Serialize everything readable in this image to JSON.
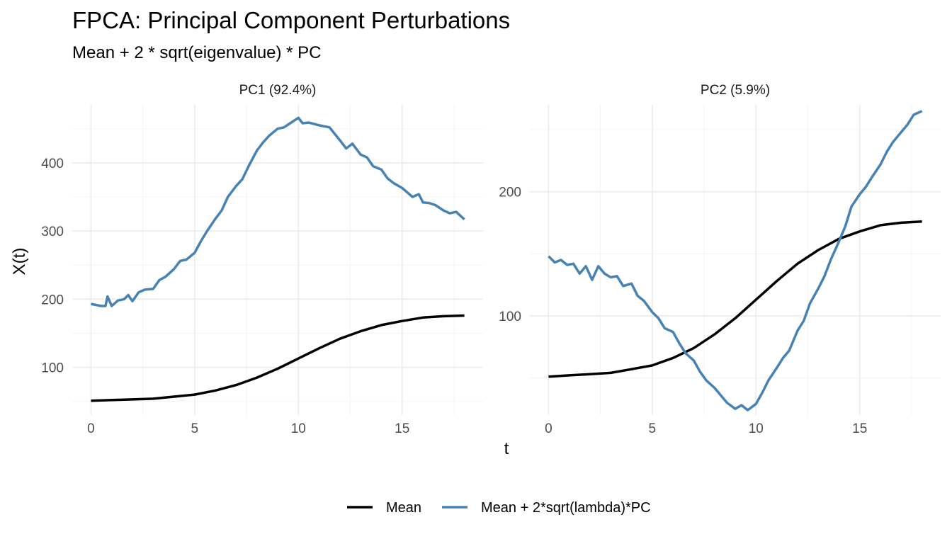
{
  "title": "FPCA: Principal Component Perturbations",
  "subtitle": "Mean + 2 * sqrt(eigenvalue) * PC",
  "colors": {
    "mean": "#000000",
    "perturbed": "#4682B4"
  },
  "legend": {
    "mean_label": "Mean",
    "perturbed_label": "Mean + 2*sqrt(lambda)*PC",
    "position": "bottom"
  },
  "chart_data": [
    {
      "type": "line",
      "panel": "PC1 (92.4%)",
      "xlabel": "t",
      "ylabel": "X(t)",
      "xlim": [
        -0.9,
        18.9
      ],
      "ylim": [
        30,
        485
      ],
      "xticks": [
        0,
        5,
        10,
        15
      ],
      "yticks": [
        100,
        200,
        300,
        400
      ],
      "series": [
        {
          "name": "Mean",
          "x": [
            0,
            1,
            2,
            3,
            4,
            5,
            6,
            7,
            8,
            9,
            10,
            11,
            12,
            13,
            14,
            15,
            16,
            17,
            18
          ],
          "values": [
            51,
            52,
            53,
            54,
            57,
            60,
            66,
            74,
            85,
            98,
            113,
            128,
            142,
            153,
            162,
            168,
            173,
            175,
            176
          ]
        },
        {
          "name": "Mean + 2*sqrt(lambda)*PC",
          "x": [
            0,
            0.5,
            0.7,
            0.8,
            1,
            1.3,
            1.6,
            1.8,
            2,
            2.3,
            2.6,
            3,
            3.3,
            3.6,
            4,
            4.3,
            4.6,
            5,
            5.3,
            5.6,
            6,
            6.3,
            6.6,
            7,
            7.3,
            7.6,
            8,
            8.3,
            8.6,
            9,
            9.3,
            9.6,
            10,
            10.2,
            10.5,
            11,
            11.5,
            12,
            12.3,
            12.6,
            13,
            13.3,
            13.6,
            14,
            14.3,
            14.6,
            15,
            15.5,
            15.8,
            16,
            16.3,
            16.6,
            17,
            17.3,
            17.6,
            18
          ],
          "values": [
            193,
            190,
            190,
            204,
            190,
            198,
            200,
            206,
            197,
            210,
            214,
            215,
            228,
            233,
            244,
            256,
            258,
            268,
            285,
            300,
            318,
            330,
            350,
            366,
            376,
            395,
            418,
            430,
            440,
            450,
            452,
            458,
            466,
            458,
            459,
            455,
            452,
            433,
            421,
            428,
            412,
            408,
            395,
            390,
            377,
            370,
            363,
            350,
            354,
            342,
            341,
            338,
            330,
            326,
            328,
            317
          ]
        }
      ]
    },
    {
      "type": "line",
      "panel": "PC2 (5.9%)",
      "xlabel": "t",
      "ylabel": "X(t)",
      "xlim": [
        -0.9,
        18.9
      ],
      "ylim": [
        20,
        270
      ],
      "xticks": [
        0,
        5,
        10,
        15
      ],
      "yticks": [
        100,
        200
      ],
      "series": [
        {
          "name": "Mean",
          "x": [
            0,
            1,
            2,
            3,
            4,
            5,
            6,
            7,
            8,
            9,
            10,
            11,
            12,
            13,
            14,
            15,
            16,
            17,
            18
          ],
          "values": [
            51,
            52,
            53,
            54,
            57,
            60,
            66,
            74,
            85,
            98,
            113,
            128,
            142,
            153,
            162,
            168,
            173,
            175,
            176
          ]
        },
        {
          "name": "Mean + 2*sqrt(lambda)*PC",
          "x": [
            0,
            0.3,
            0.6,
            0.9,
            1.2,
            1.5,
            1.8,
            2.1,
            2.4,
            2.7,
            3,
            3.3,
            3.6,
            4,
            4.3,
            4.6,
            5,
            5.3,
            5.6,
            6,
            6.3,
            6.6,
            7,
            7.3,
            7.6,
            8,
            8.3,
            8.6,
            9,
            9.3,
            9.6,
            10,
            10.3,
            10.6,
            11,
            11.3,
            11.6,
            12,
            12.3,
            12.6,
            13,
            13.3,
            13.6,
            14,
            14.3,
            14.6,
            15,
            15.3,
            15.6,
            16,
            16.3,
            16.6,
            17,
            17.3,
            17.6,
            18
          ],
          "values": [
            148,
            143,
            145,
            141,
            142,
            134,
            140,
            129,
            140,
            134,
            131,
            132,
            124,
            126,
            116,
            112,
            103,
            98,
            90,
            87,
            78,
            70,
            64,
            55,
            48,
            42,
            36,
            30,
            25,
            28,
            24,
            29,
            38,
            48,
            58,
            66,
            72,
            88,
            96,
            110,
            122,
            132,
            145,
            160,
            172,
            188,
            198,
            204,
            212,
            222,
            232,
            240,
            248,
            254,
            262,
            265
          ]
        }
      ]
    }
  ]
}
